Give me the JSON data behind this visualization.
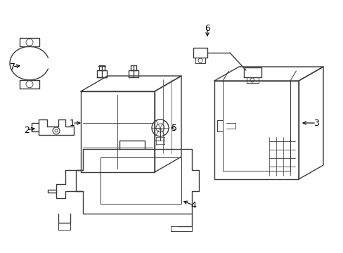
{
  "bg_color": "#ffffff",
  "line_color": "#3a3a3a",
  "label_color": "#000000",
  "fig_width": 4.89,
  "fig_height": 3.6,
  "dpi": 100
}
